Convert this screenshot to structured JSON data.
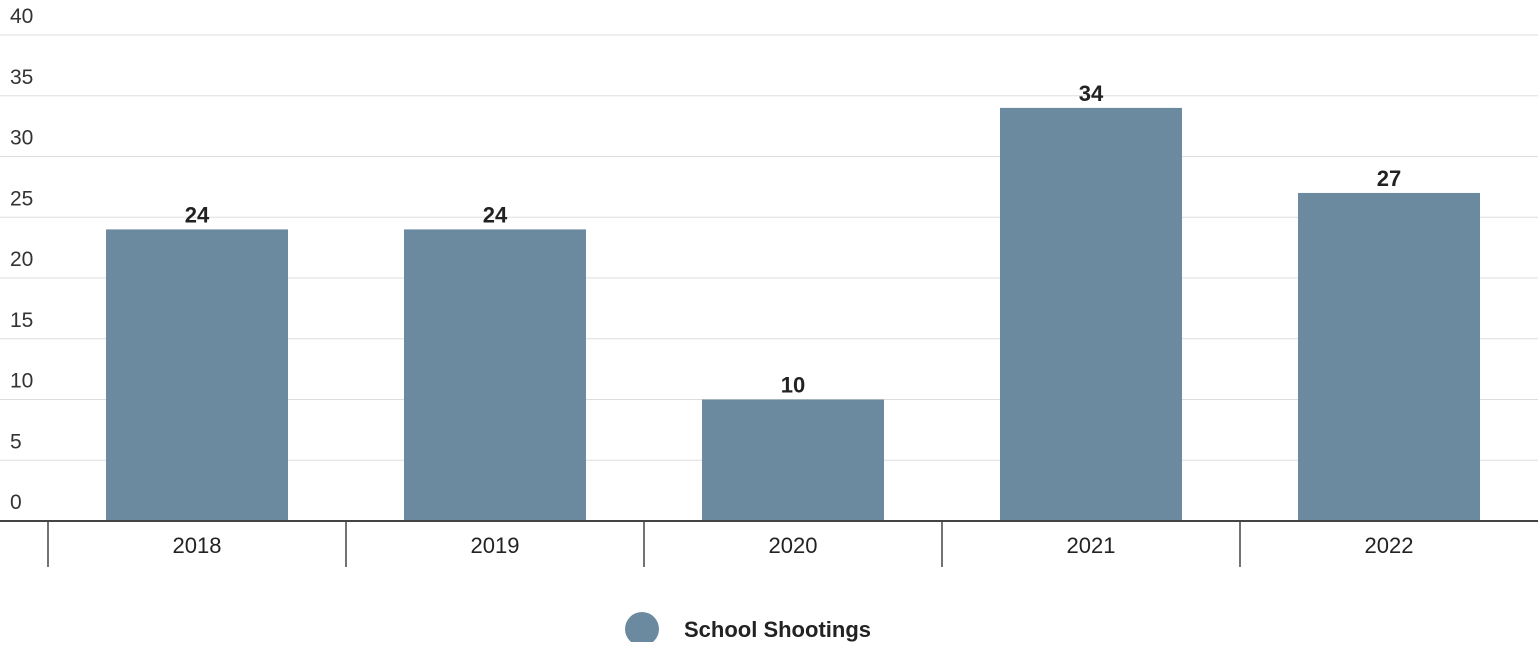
{
  "chart_data": {
    "type": "bar",
    "title": "",
    "xlabel": "",
    "ylabel": "",
    "categories": [
      "2018",
      "2019",
      "2020",
      "2021",
      "2022"
    ],
    "series": [
      {
        "name": "School Shootings",
        "values": [
          24,
          24,
          10,
          34,
          27
        ]
      }
    ],
    "ylim": [
      0,
      40
    ],
    "yticks": [
      0,
      5,
      10,
      15,
      20,
      25,
      30,
      35,
      40
    ],
    "grid": true,
    "legend": "bottom-center",
    "data_labels": true,
    "colors": {
      "bar": "#6b8aa0",
      "grid": "#dddddd",
      "axis": "#444444"
    }
  }
}
